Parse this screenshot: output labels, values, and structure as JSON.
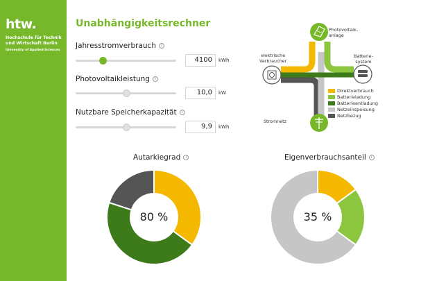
{
  "sidebar": {
    "logo_mark": "htw.",
    "institution_line1": "Hochschule für Technik",
    "institution_line2": "und Wirtschaft Berlin",
    "institution_line3": "University of Applied Sciences"
  },
  "header": {
    "title": "Unabhängigkeitsrechner"
  },
  "controls": {
    "consumption": {
      "label": "Jahresstromverbrauch",
      "value": "4100",
      "unit": "kWh",
      "level": 0.27
    },
    "pv": {
      "label": "Photovoltaikleistung",
      "value": "10,0",
      "unit": "kW",
      "level": 0.5
    },
    "storage": {
      "label": "Nutzbare Speicherkapazität",
      "value": "9,9",
      "unit": "kWh",
      "level": 0.5
    }
  },
  "flow": {
    "pv_label_1": "Photovoltaik-",
    "pv_label_2": "anlage",
    "consumer_label_1": "elektrische",
    "consumer_label_2": "Verbraucher",
    "battery_label_1": "Batterie-",
    "battery_label_2": "system",
    "grid_label": "Stromnetz"
  },
  "legend": [
    {
      "label": "Direktverbrauch",
      "color": "#f5b800"
    },
    {
      "label": "Batterieladung",
      "color": "#8cc63f"
    },
    {
      "label": "Batterieentladung",
      "color": "#3d7a1a"
    },
    {
      "label": "Netzeinspeisung",
      "color": "#c6c6c6"
    },
    {
      "label": "Netzbezug",
      "color": "#555555"
    }
  ],
  "charts": {
    "autarky": {
      "title": "Autarkiegrad",
      "value_text": "80 %"
    },
    "self_consumption": {
      "title": "Eigenverbrauchsanteil",
      "value_text": "35 %"
    }
  },
  "chart_data": [
    {
      "type": "pie",
      "title": "Autarkiegrad",
      "categories": [
        "Direktverbrauch",
        "Batterieentladung",
        "Netzbezug"
      ],
      "values": [
        35,
        45,
        20
      ],
      "colors": [
        "#f5b800",
        "#3d7a1a",
        "#555555"
      ],
      "center_label": "80 %"
    },
    {
      "type": "pie",
      "title": "Eigenverbrauchsanteil",
      "categories": [
        "Direktverbrauch",
        "Batterieladung",
        "Netzeinspeisung"
      ],
      "values": [
        15,
        20,
        65
      ],
      "colors": [
        "#f5b800",
        "#8cc63f",
        "#c6c6c6"
      ],
      "center_label": "35 %"
    }
  ]
}
